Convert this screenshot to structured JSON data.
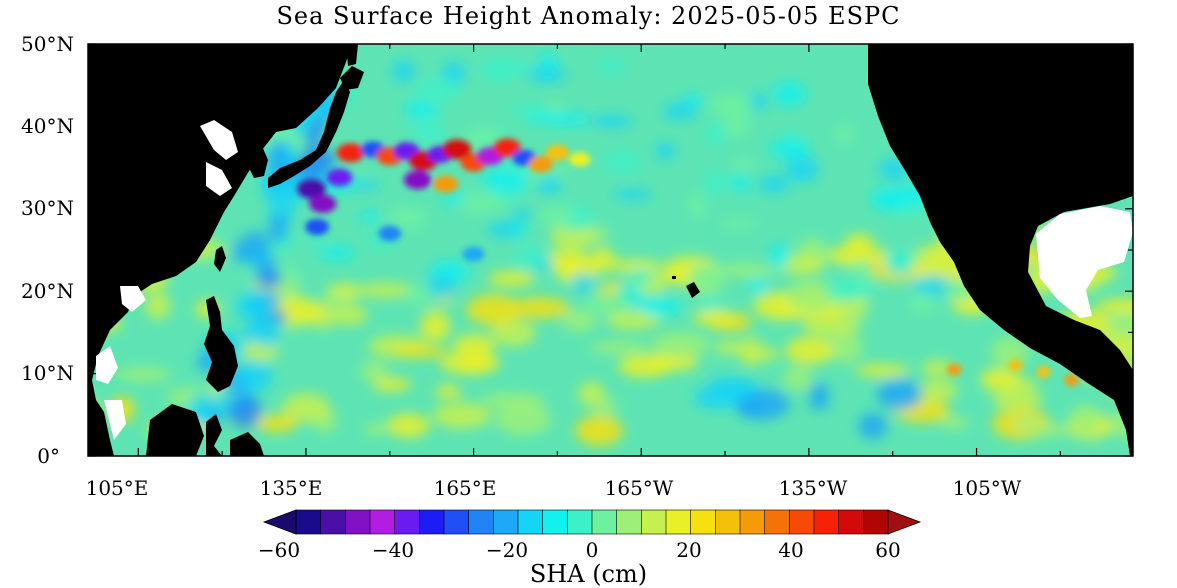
{
  "title": "Sea Surface Height Anomaly: 2025-05-05 ESPC",
  "lat_axis": {
    "ticks": [
      "50°N",
      "40°N",
      "30°N",
      "20°N",
      "10°N",
      "0°"
    ],
    "values": [
      50,
      40,
      30,
      20,
      10,
      0
    ]
  },
  "lon_axis": {
    "ticks": [
      "105°E",
      "135°E",
      "165°E",
      "165°W",
      "135°W",
      "105°W"
    ],
    "values": [
      105,
      135,
      165,
      195,
      225,
      255
    ]
  },
  "colorbar": {
    "label": "SHA (cm)",
    "tick_labels": [
      "−60",
      "−40",
      "−20",
      "0",
      "20",
      "40",
      "60"
    ],
    "tick_values": [
      -60,
      -40,
      -20,
      0,
      20,
      40,
      60
    ],
    "colors": [
      "#1a0a8c",
      "#4b0fa8",
      "#8410c4",
      "#b11ee0",
      "#6a1cf0",
      "#1c1cf5",
      "#1f4ff5",
      "#2184f5",
      "#1fa8f5",
      "#15d4f5",
      "#12f0f0",
      "#3df0c8",
      "#6ef0a0",
      "#9cf078",
      "#c6f050",
      "#eaf028",
      "#f5e010",
      "#f5c00a",
      "#f59a08",
      "#f57208",
      "#f54a08",
      "#f52208",
      "#d40a0a",
      "#b00505"
    ],
    "min_color": "#1a0a6e",
    "max_color": "#a01010"
  },
  "chart_data": {
    "type": "heatmap",
    "title": "Sea Surface Height Anomaly: 2025-05-05 ESPC",
    "variable": "SHA (cm)",
    "lat_range": [
      0,
      50
    ],
    "lon_range": [
      96,
      283
    ],
    "color_range": [
      -60,
      60
    ],
    "features": [
      {
        "type": "eddy-field",
        "lat": 36,
        "lon": 162,
        "strength": 45
      },
      {
        "type": "eddy-field",
        "lat": 31,
        "lon": 137,
        "strength": -45
      },
      {
        "type": "negative-band",
        "lat": 5,
        "lon": 225,
        "strength": -20
      },
      {
        "type": "positive-band",
        "lat": 10,
        "lon": 140,
        "strength": 20
      }
    ]
  }
}
